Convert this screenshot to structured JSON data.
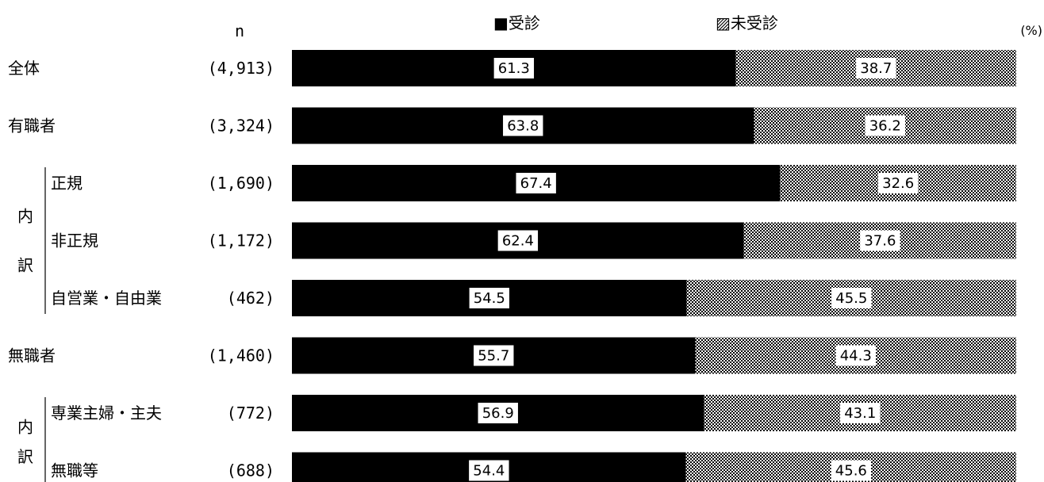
{
  "chart_data": {
    "type": "bar",
    "stacked": true,
    "orientation": "horizontal",
    "unit": "(%)",
    "n_header": "n",
    "legend": [
      "■受診",
      "▨未受診"
    ],
    "legend_position": "top",
    "xlim": [
      0,
      100
    ],
    "rows": [
      {
        "label": "全体",
        "n": "(4,913)",
        "indent": false
      },
      {
        "label": "有職者",
        "n": "(3,324)",
        "indent": false
      },
      {
        "label": "正規",
        "n": "(1,690)",
        "indent": true
      },
      {
        "label": "非正規",
        "n": "(1,172)",
        "indent": true
      },
      {
        "label": "自営業・自由業",
        "n": "(462)",
        "indent": true
      },
      {
        "label": "無職者",
        "n": "(1,460)",
        "indent": false
      },
      {
        "label": "専業主婦・主夫",
        "n": "(772)",
        "indent": true
      },
      {
        "label": "無職等",
        "n": "(688)",
        "indent": true
      }
    ],
    "groups": [
      {
        "label": "内訳",
        "chars": [
          "内",
          "訳"
        ],
        "first_row": 2,
        "last_row": 4
      },
      {
        "label": "内訳",
        "chars": [
          "内",
          "訳"
        ],
        "first_row": 6,
        "last_row": 7
      }
    ],
    "series": [
      {
        "name": "受診",
        "color": "#000000",
        "pattern": "solid",
        "values": [
          61.3,
          63.8,
          67.4,
          62.4,
          54.5,
          55.7,
          56.9,
          54.4
        ]
      },
      {
        "name": "未受診",
        "color": "#ffffff",
        "pattern": "checker",
        "values": [
          38.7,
          36.2,
          32.6,
          37.6,
          45.5,
          44.3,
          43.1,
          45.6
        ]
      }
    ]
  }
}
